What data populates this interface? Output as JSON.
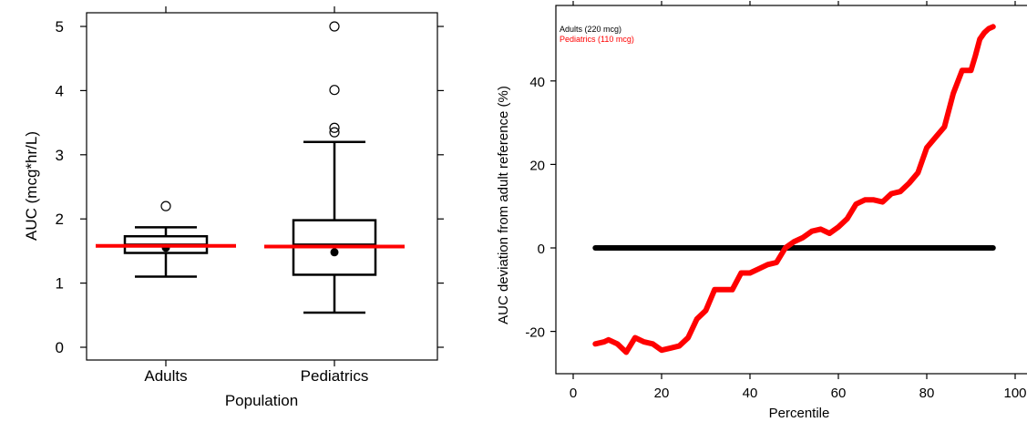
{
  "chart_data": [
    {
      "type": "box",
      "xlabel": "Population",
      "ylabel": "AUC (mcg*hr/L)",
      "ylim": [
        -0.2,
        5.2
      ],
      "yticks": [
        "0",
        "1",
        "2",
        "3",
        "4",
        "5"
      ],
      "categories": [
        "Adults",
        "Pediatrics"
      ],
      "boxes": [
        {
          "name": "Adults",
          "whisker_low": 1.1,
          "q1": 1.47,
          "median": 1.6,
          "q3": 1.73,
          "whisker_high": 1.87,
          "mean": 1.55,
          "outliers": [
            2.2
          ],
          "reference_line": 1.58
        },
        {
          "name": "Pediatrics",
          "whisker_low": 0.54,
          "q1": 1.13,
          "median": 1.6,
          "q3": 1.98,
          "whisker_high": 3.2,
          "mean": 1.48,
          "outliers": [
            3.35,
            3.42,
            4.01,
            5.0
          ],
          "reference_line": 1.57
        }
      ],
      "colors": {
        "box": "#000000",
        "reference": "#ff0000"
      }
    },
    {
      "type": "line",
      "xlabel": "Percentile",
      "ylabel": "AUC deviation from adult reference (%)",
      "xlim": [
        -3,
        100
      ],
      "ylim": [
        -30,
        57
      ],
      "xticks": [
        "0",
        "20",
        "40",
        "60",
        "80",
        "100"
      ],
      "yticks": [
        "-20",
        "0",
        "20",
        "40"
      ],
      "series": [
        {
          "name": "Adults (220 mcg)",
          "color": "#000000",
          "x": [
            5,
            95
          ],
          "y": [
            0,
            0
          ]
        },
        {
          "name": "Pediatrics (110 mcg)",
          "color": "#ff0000",
          "x": [
            5,
            7,
            8,
            10,
            12,
            14,
            16,
            18,
            20,
            22,
            24,
            26,
            28,
            30,
            32,
            34,
            36,
            38,
            40,
            42,
            44,
            46,
            48,
            50,
            52,
            54,
            56,
            58,
            60,
            62,
            64,
            66,
            68,
            70,
            72,
            74,
            76,
            78,
            80,
            82,
            84,
            86,
            88,
            90,
            91,
            92,
            93,
            94,
            95
          ],
          "y": [
            -23,
            -22.5,
            -22,
            -23,
            -25,
            -21.5,
            -22.5,
            -23,
            -24.5,
            -24,
            -23.5,
            -21.5,
            -17,
            -15,
            -10,
            -10,
            -10,
            -6,
            -6,
            -5,
            -4,
            -3.5,
            0,
            1.5,
            2.5,
            4,
            4.5,
            3.5,
            5,
            7,
            10.5,
            11.5,
            11.5,
            11,
            13,
            13.5,
            15.5,
            18,
            24,
            26.5,
            29,
            37,
            42.5,
            42.5,
            46,
            50,
            51.5,
            52.5,
            53
          ]
        }
      ]
    }
  ]
}
